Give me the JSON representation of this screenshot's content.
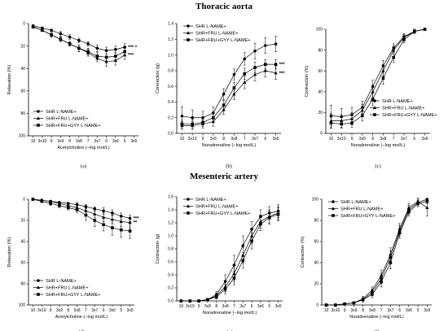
{
  "sections": {
    "top_title": "Thoracic aorta",
    "bottom_title": "Mesenteric artery"
  },
  "chart_data": [
    {
      "id": "a",
      "panel_label": "(a)",
      "type": "line",
      "ylabel": "Relaxation (%)",
      "xlabel": "Acetylcholine (−log mol/L)",
      "y_inverted": true,
      "ylim": [
        0,
        100
      ],
      "yticks": [
        0,
        20,
        40,
        60,
        80,
        100
      ],
      "xticks": [
        "10",
        "3x10",
        "9",
        "3x9",
        "8",
        "3x8",
        "7",
        "3x7",
        "6",
        "3x6",
        "5",
        "3x5"
      ],
      "legend_position": "bottom-left",
      "significance": [
        {
          "text": "*** *",
          "series": 0
        },
        {
          "text": "***",
          "series": 1
        }
      ],
      "series": [
        {
          "name": "SHR L-NAME+",
          "marker": "circle",
          "x": [
            0,
            1,
            2,
            3,
            4,
            5,
            6,
            7,
            8,
            9,
            10
          ],
          "values": [
            2,
            4,
            6,
            9,
            12,
            15,
            18,
            22,
            24,
            23,
            21
          ],
          "err": [
            1,
            1,
            1,
            2,
            2,
            2,
            2,
            3,
            3,
            3,
            3
          ]
        },
        {
          "name": "SHR+FRU L-NAME+",
          "marker": "triangle",
          "x": [
            0,
            1,
            2,
            3,
            4,
            5,
            6,
            7,
            8,
            9,
            10
          ],
          "values": [
            3,
            6,
            10,
            14,
            18,
            22,
            26,
            31,
            34,
            33,
            28
          ],
          "err": [
            1,
            1,
            2,
            2,
            2,
            3,
            3,
            3,
            4,
            4,
            4
          ]
        },
        {
          "name": "SHR+FRU+GYY L-NAME+",
          "marker": "square",
          "x": [
            0,
            1,
            2,
            3,
            4,
            5,
            6,
            7,
            8,
            9,
            10
          ],
          "values": [
            3,
            6,
            10,
            14,
            18,
            22,
            25,
            29,
            30,
            29,
            25
          ],
          "err": [
            1,
            1,
            2,
            2,
            2,
            3,
            3,
            3,
            3,
            3,
            3
          ]
        }
      ]
    },
    {
      "id": "b",
      "panel_label": "(b)",
      "type": "line",
      "ylabel": "Contraction (g)",
      "xlabel": "Noradrenaline (−log mol/L)",
      "ylim": [
        0,
        1.4
      ],
      "yticks": [
        0.0,
        0.2,
        0.4,
        0.6,
        0.8,
        1.0,
        1.2,
        1.4
      ],
      "xticks": [
        "10",
        "3x10",
        "9",
        "3x9",
        "8",
        "3x8",
        "7",
        "3x7",
        "6",
        "3x6"
      ],
      "legend_position": "top-left",
      "significance": [
        {
          "text": "***",
          "series": 2
        },
        {
          "text": "***",
          "series": 1
        }
      ],
      "series": [
        {
          "name": "SHR L-NAME+",
          "marker": "circle",
          "x": [
            0,
            1,
            2,
            3,
            4,
            5,
            6,
            7,
            8,
            9
          ],
          "values": [
            0.22,
            0.2,
            0.2,
            0.26,
            0.5,
            0.75,
            0.95,
            1.05,
            1.12,
            1.14
          ],
          "err": [
            0.12,
            0.1,
            0.08,
            0.08,
            0.07,
            0.07,
            0.08,
            0.1,
            0.1,
            0.1
          ]
        },
        {
          "name": "SHR+FRU L-NAME+",
          "marker": "triangle",
          "x": [
            0,
            1,
            2,
            3,
            4,
            5,
            6,
            7,
            8,
            9
          ],
          "values": [
            0.1,
            0.1,
            0.12,
            0.15,
            0.3,
            0.5,
            0.65,
            0.75,
            0.8,
            0.77
          ],
          "err": [
            0.05,
            0.05,
            0.05,
            0.06,
            0.06,
            0.07,
            0.08,
            0.08,
            0.08,
            0.08
          ]
        },
        {
          "name": "SHR+FRU+GYY L-NAME+",
          "marker": "square",
          "x": [
            0,
            1,
            2,
            3,
            4,
            5,
            6,
            7,
            8,
            9
          ],
          "values": [
            0.12,
            0.12,
            0.14,
            0.2,
            0.36,
            0.58,
            0.76,
            0.84,
            0.88,
            0.88
          ],
          "err": [
            0.05,
            0.05,
            0.05,
            0.06,
            0.06,
            0.07,
            0.07,
            0.07,
            0.06,
            0.06
          ]
        }
      ]
    },
    {
      "id": "c",
      "panel_label": "(c)",
      "type": "line",
      "ylabel": "Contraction (%)",
      "xlabel": "Noradrenaline (−log mol/L)",
      "ylim": [
        0,
        100
      ],
      "yticks": [
        0,
        20,
        40,
        60,
        80,
        100
      ],
      "xticks": [
        "10",
        "3x10",
        "9",
        "3x9",
        "8",
        "3x8",
        "7",
        "3x7",
        "6",
        "3x6"
      ],
      "legend_position": "bottom-right",
      "significance": [],
      "series": [
        {
          "name": "SHR L-NAME+",
          "marker": "circle",
          "x": [
            0,
            1,
            2,
            3,
            4,
            5,
            6,
            7,
            8,
            9
          ],
          "values": [
            17,
            16,
            18,
            25,
            45,
            65,
            82,
            93,
            98,
            100
          ],
          "err": [
            10,
            8,
            7,
            6,
            6,
            5,
            4,
            3,
            2,
            0
          ]
        },
        {
          "name": "SHR+FRU L-NAME+",
          "marker": "triangle",
          "x": [
            0,
            1,
            2,
            3,
            4,
            5,
            6,
            7,
            8,
            9
          ],
          "values": [
            12,
            12,
            14,
            22,
            40,
            60,
            80,
            92,
            98,
            100
          ],
          "err": [
            7,
            6,
            6,
            6,
            6,
            5,
            4,
            3,
            2,
            0
          ]
        },
        {
          "name": "SHR+FRU+GYY L-NAME+",
          "marker": "square",
          "x": [
            0,
            1,
            2,
            3,
            4,
            5,
            6,
            7,
            8,
            9
          ],
          "values": [
            10,
            9,
            10,
            17,
            33,
            53,
            73,
            90,
            98,
            100
          ],
          "err": [
            5,
            4,
            4,
            5,
            6,
            6,
            5,
            3,
            2,
            0
          ]
        }
      ]
    },
    {
      "id": "d",
      "panel_label": "(d)",
      "type": "line",
      "ylabel": "Relaxation (%)",
      "xlabel": "Acetylcholine (−log mol/L)",
      "y_inverted": true,
      "ylim": [
        0,
        100
      ],
      "yticks": [
        0,
        20,
        40,
        60,
        80,
        100
      ],
      "xticks": [
        "10",
        "3x10",
        "9",
        "3x9",
        "8",
        "3x8",
        "7",
        "3x7",
        "6",
        "3x6",
        "5",
        "3x5"
      ],
      "legend_position": "bottom-left",
      "significance": [
        {
          "text": "***",
          "series": 0
        },
        {
          "text": "**",
          "series": 1
        }
      ],
      "series": [
        {
          "name": "SHR L-NAME+",
          "marker": "circle",
          "x": [
            0,
            1,
            2,
            3,
            4,
            5,
            6,
            7,
            8,
            9,
            10,
            11
          ],
          "values": [
            0,
            1,
            2,
            3,
            4,
            5,
            7,
            9,
            11,
            13,
            16,
            18
          ],
          "err": [
            1,
            1,
            1,
            1,
            1,
            2,
            2,
            2,
            3,
            3,
            3,
            3
          ]
        },
        {
          "name": "SHR+FRU L-NAME+",
          "marker": "triangle",
          "x": [
            0,
            1,
            2,
            3,
            4,
            5,
            6,
            7,
            8,
            9,
            10,
            11
          ],
          "values": [
            0,
            1,
            2,
            4,
            6,
            8,
            11,
            14,
            17,
            19,
            21,
            22
          ],
          "err": [
            1,
            1,
            1,
            1,
            2,
            2,
            3,
            3,
            4,
            4,
            5,
            5
          ]
        },
        {
          "name": "SHR+FRU+GYY L-NAME+",
          "marker": "square",
          "x": [
            0,
            1,
            2,
            3,
            4,
            5,
            6,
            7,
            8,
            9,
            10,
            11
          ],
          "values": [
            0,
            2,
            4,
            6,
            8,
            10,
            15,
            20,
            24,
            27,
            29,
            30
          ],
          "err": [
            1,
            1,
            2,
            2,
            2,
            3,
            5,
            6,
            6,
            7,
            7,
            7
          ]
        }
      ]
    },
    {
      "id": "e",
      "panel_label": "(e)",
      "type": "line",
      "ylabel": "Contraction (g)",
      "xlabel": "Noradrenaline (−log mol/L)",
      "ylim": [
        0,
        1.6
      ],
      "yticks": [
        0.0,
        0.2,
        0.4,
        0.6,
        0.8,
        1.0,
        1.2,
        1.4,
        1.6
      ],
      "xticks": [
        "10",
        "3x10",
        "9",
        "3x9",
        "8",
        "3x8",
        "7",
        "3x7",
        "6",
        "3x6",
        "5",
        "3x5"
      ],
      "legend_position": "top-left",
      "significance": [],
      "series": [
        {
          "name": "SHR L-NAME+",
          "marker": "circle",
          "x": [
            0,
            1,
            2,
            3,
            4,
            5,
            6,
            7,
            8,
            9,
            10,
            11
          ],
          "values": [
            0,
            0,
            0,
            0.02,
            0.1,
            0.3,
            0.55,
            0.85,
            1.1,
            1.3,
            1.35,
            1.38
          ],
          "err": [
            0.01,
            0.01,
            0.01,
            0.02,
            0.04,
            0.1,
            0.15,
            0.15,
            0.12,
            0.1,
            0.1,
            0.1
          ]
        },
        {
          "name": "SHR+FRU L-NAME+",
          "marker": "triangle",
          "x": [
            0,
            1,
            2,
            3,
            4,
            5,
            6,
            7,
            8,
            9,
            10,
            11
          ],
          "values": [
            0,
            0,
            0,
            0.02,
            0.08,
            0.22,
            0.42,
            0.7,
            1.0,
            1.22,
            1.3,
            1.35
          ],
          "err": [
            0.01,
            0.01,
            0.01,
            0.02,
            0.03,
            0.08,
            0.12,
            0.12,
            0.12,
            0.1,
            0.1,
            0.1
          ]
        },
        {
          "name": "SHR+FRU+GYY L-NAME+",
          "marker": "square",
          "x": [
            0,
            1,
            2,
            3,
            4,
            5,
            6,
            7,
            8,
            9,
            10,
            11
          ],
          "values": [
            0,
            0,
            0,
            0.02,
            0.06,
            0.18,
            0.35,
            0.62,
            0.92,
            1.18,
            1.28,
            1.33
          ],
          "err": [
            0.01,
            0.01,
            0.01,
            0.02,
            0.03,
            0.07,
            0.1,
            0.12,
            0.12,
            0.1,
            0.1,
            0.1
          ]
        }
      ]
    },
    {
      "id": "f",
      "panel_label": "(f)",
      "type": "line",
      "ylabel": "Contraction (%)",
      "xlabel": "Noradrenaline (−log mol/L)",
      "ylim": [
        0,
        100
      ],
      "yticks": [
        0,
        20,
        40,
        60,
        80,
        100
      ],
      "xticks": [
        "10",
        "3x10",
        "9",
        "3x9",
        "8",
        "3x8",
        "7",
        "3x7",
        "6",
        "3x6",
        "5",
        "3x5"
      ],
      "legend_position": "top-left",
      "significance": [],
      "series": [
        {
          "name": "SHR L-NAME+",
          "marker": "circle",
          "x": [
            0,
            1,
            2,
            3,
            4,
            5,
            6,
            7,
            8,
            9,
            10,
            11
          ],
          "values": [
            0,
            0,
            1,
            2,
            5,
            12,
            25,
            45,
            70,
            90,
            97,
            100
          ],
          "err": [
            1,
            1,
            1,
            1,
            2,
            3,
            5,
            6,
            5,
            4,
            3,
            0
          ]
        },
        {
          "name": "SHR+FRU L-NAME+",
          "marker": "triangle",
          "x": [
            0,
            1,
            2,
            3,
            4,
            5,
            6,
            7,
            8,
            9,
            10,
            11
          ],
          "values": [
            0,
            0,
            1,
            2,
            6,
            14,
            28,
            48,
            72,
            92,
            98,
            92
          ],
          "err": [
            1,
            1,
            1,
            1,
            2,
            3,
            5,
            6,
            5,
            4,
            3,
            8
          ]
        },
        {
          "name": "SHR+FRU+GYY L-NAME+",
          "marker": "square",
          "x": [
            0,
            1,
            2,
            3,
            4,
            5,
            6,
            7,
            8,
            9,
            10,
            11
          ],
          "values": [
            0,
            0,
            1,
            2,
            5,
            10,
            22,
            40,
            68,
            88,
            96,
            98
          ],
          "err": [
            1,
            1,
            1,
            1,
            2,
            3,
            5,
            6,
            5,
            4,
            3,
            2
          ]
        }
      ]
    }
  ]
}
